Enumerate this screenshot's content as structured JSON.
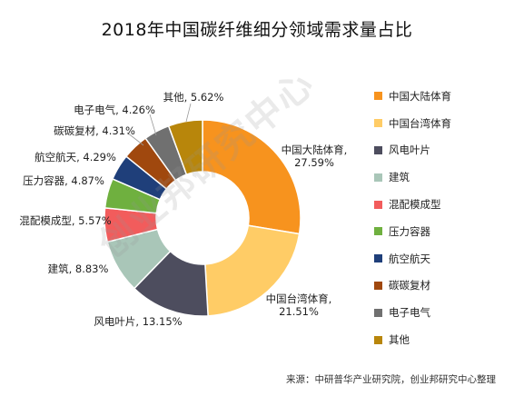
{
  "chart_data": {
    "type": "pie",
    "donut": true,
    "title": "2018年中国碳纤维细分领域需求量占比",
    "series": [
      {
        "name": "中国大陆体育",
        "label": "中国大陆体育,",
        "value": 27.59,
        "value_text": "27.59%",
        "color": "#F7931E"
      },
      {
        "name": "中国台湾体育",
        "label": "中国台湾体育,",
        "value": 21.51,
        "value_text": "21.51%",
        "color": "#FFCC66"
      },
      {
        "name": "风电叶片",
        "label": "风电叶片, 13.15%",
        "value": 13.15,
        "color": "#4D4D5E"
      },
      {
        "name": "建筑",
        "label": "建筑, 8.83%",
        "value": 8.83,
        "color": "#A9C6B8"
      },
      {
        "name": "混配模成型",
        "label": "混配模成型, 5.57%",
        "value": 5.57,
        "color": "#F25C5C"
      },
      {
        "name": "压力容器",
        "label": "压力容器, 4.87%",
        "value": 4.87,
        "color": "#6FB03F"
      },
      {
        "name": "航空航天",
        "label": "航空航天, 4.29%",
        "value": 4.29,
        "color": "#1F3F7A"
      },
      {
        "name": "碳碳复材",
        "label": "碳碳复材, 4.31%",
        "value": 4.31,
        "color": "#A0480E"
      },
      {
        "name": "电子电气",
        "label": "电子电气, 4.26%",
        "value": 4.26,
        "color": "#707070"
      },
      {
        "name": "其他",
        "label": "其他, 5.62%",
        "value": 5.62,
        "color": "#B8860B"
      }
    ],
    "legend_position": "right"
  },
  "source": "来源：中研普华产业研究院，创业邦研究中心整理",
  "watermark": "创业邦研究中心"
}
